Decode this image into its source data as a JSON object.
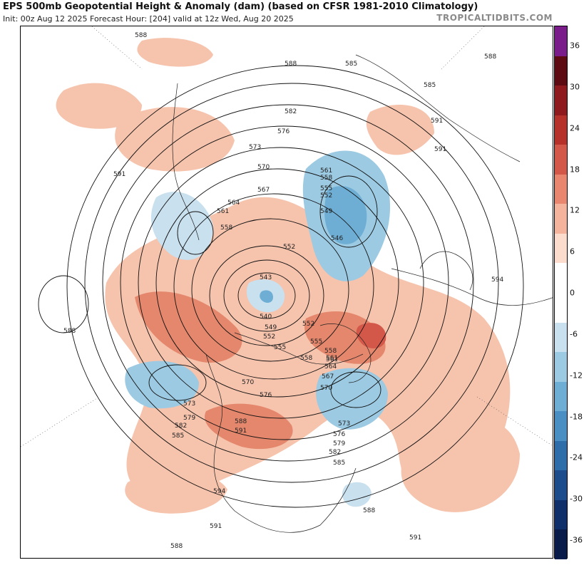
{
  "header": {
    "title": "EPS 500mb Geopotential Height & Anomaly (dam) (based on CFSR 1981-2010 Climatology)",
    "subtitle": "Init: 00z Aug 12 2025   Forecast Hour: [204]   valid at 12z Wed, Aug 20 2025",
    "brand": "TROPICALTIDBITS.COM"
  },
  "colorbar": {
    "ticks": [
      "36",
      "30",
      "24",
      "18",
      "12",
      "6",
      "0",
      "-6",
      "-12",
      "-18",
      "-24",
      "-30",
      "-36"
    ],
    "colors": [
      "#7a1d8a",
      "#5e0a12",
      "#8e1a1d",
      "#b7312b",
      "#d4584a",
      "#e8866f",
      "#f4b39c",
      "#fbdccd",
      "#ffffff",
      "#ffffff",
      "#c9e0ee",
      "#9ccae2",
      "#6eaed4",
      "#4a8fc3",
      "#2d6da9",
      "#1c4c8c",
      "#0f2f6b",
      "#091b48"
    ]
  },
  "map": {
    "contour_labels": [
      "588",
      "591",
      "585",
      "588",
      "585",
      "591",
      "588",
      "591",
      "582",
      "576",
      "573",
      "570",
      "567",
      "564",
      "561",
      "558",
      "561",
      "558",
      "555",
      "552",
      "549",
      "546",
      "552",
      "543",
      "540",
      "549",
      "552",
      "555",
      "558",
      "561",
      "570",
      "576",
      "573",
      "579",
      "582",
      "585",
      "588",
      "591",
      "594",
      "594",
      "588",
      "591",
      "588",
      "591",
      "588",
      "585",
      "582",
      "579",
      "576",
      "573",
      "570",
      "567",
      "564",
      "561",
      "558",
      "555",
      "552"
    ]
  }
}
